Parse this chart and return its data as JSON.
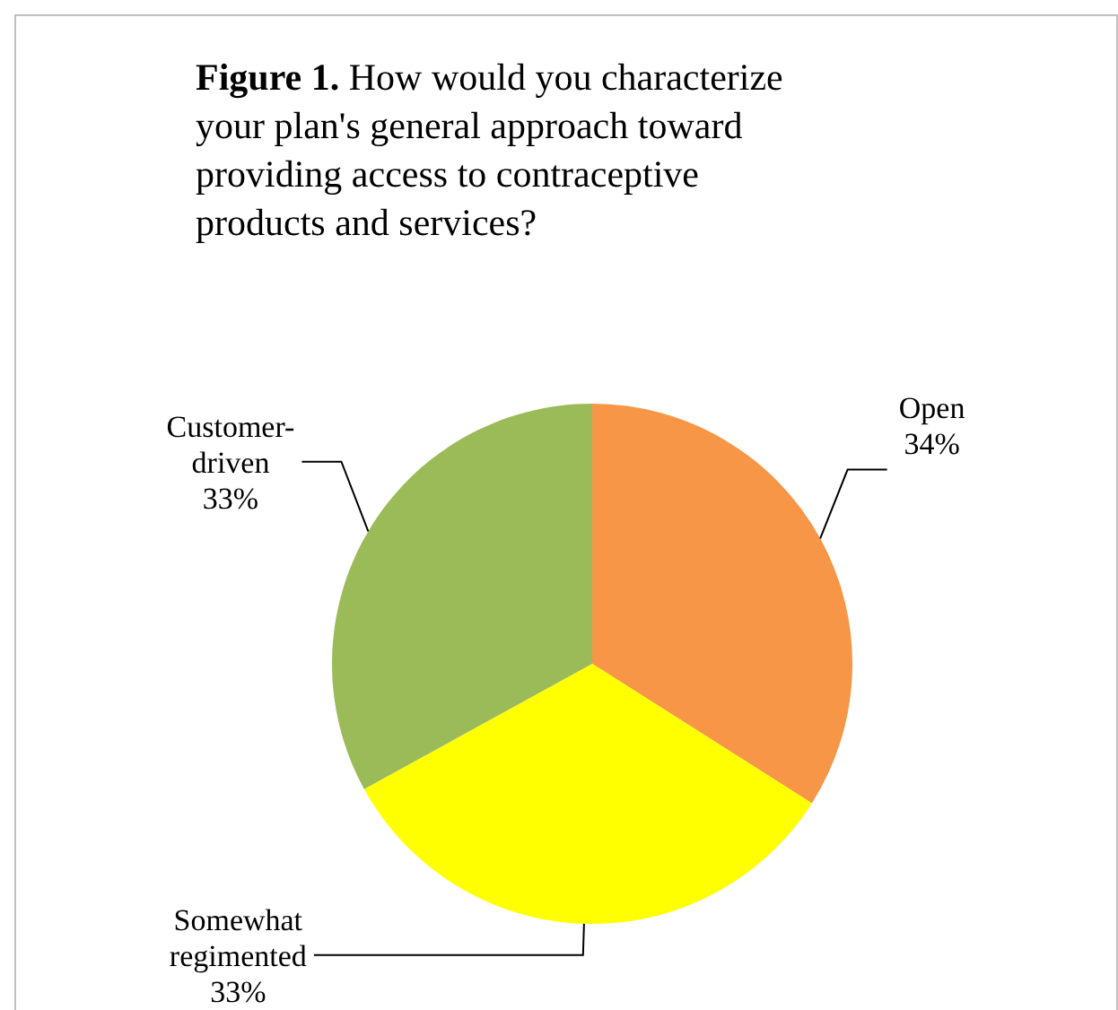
{
  "chart_data": {
    "type": "pie",
    "title": "Figure 1. How would you characterize your plan's general approach toward providing access to contraceptive products and services?",
    "categories": [
      "Open",
      "Somewhat regimented",
      "Customer-driven"
    ],
    "values": [
      34,
      33,
      33
    ],
    "colors": [
      "#f79646",
      "#ffff00",
      "#9bbb59"
    ],
    "value_labels": [
      "34%",
      "33%",
      "33%"
    ]
  }
}
